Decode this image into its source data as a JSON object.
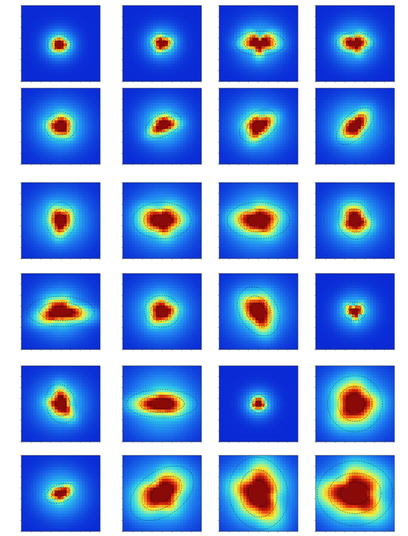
{
  "figure": {
    "rows": 6,
    "cols": 4,
    "colormap": [
      "#0a2ad6",
      "#1f7ff0",
      "#2fd0e8",
      "#7ff0b0",
      "#f2f03a",
      "#f5a020",
      "#e02a10",
      "#8a0a0a"
    ],
    "contour_color": "#000000"
  },
  "chart_data": [
    {
      "type": "heatmap",
      "panel": 1,
      "core": [
        -0.1,
        0.1,
        0.55,
        0.5,
        0
      ],
      "halo": 1.2,
      "irregularity": 0.15,
      "peak": 0.95
    },
    {
      "type": "heatmap",
      "panel": 2,
      "core": [
        0.0,
        0.0,
        0.6,
        0.5,
        0
      ],
      "halo": 1.3,
      "irregularity": 0.35,
      "peak": 0.95
    },
    {
      "type": "heatmap",
      "panel": 3,
      "core": [
        0.1,
        0.0,
        1.2,
        0.6,
        0
      ],
      "halo": 1.7,
      "irregularity": 0.7,
      "peak": 1.0
    },
    {
      "type": "heatmap",
      "panel": 4,
      "core": [
        0.0,
        0.0,
        0.9,
        0.55,
        0
      ],
      "halo": 1.6,
      "irregularity": 0.45,
      "peak": 1.0
    },
    {
      "type": "heatmap",
      "panel": 5,
      "core": [
        0.0,
        0.0,
        0.75,
        0.7,
        0
      ],
      "halo": 1.9,
      "irregularity": 0.25,
      "peak": 1.0
    },
    {
      "type": "heatmap",
      "panel": 6,
      "core": [
        0.1,
        -0.1,
        0.9,
        0.55,
        -25
      ],
      "halo": 1.8,
      "irregularity": 0.4,
      "peak": 1.0
    },
    {
      "type": "heatmap",
      "panel": 7,
      "core": [
        0.0,
        0.0,
        1.0,
        0.7,
        -35
      ],
      "halo": 2.0,
      "irregularity": 0.4,
      "peak": 1.0
    },
    {
      "type": "heatmap",
      "panel": 8,
      "core": [
        0.0,
        0.0,
        1.1,
        0.6,
        -45
      ],
      "halo": 2.0,
      "irregularity": 0.3,
      "peak": 1.0
    },
    {
      "type": "heatmap",
      "panel": 9,
      "core": [
        0.0,
        0.0,
        0.7,
        0.9,
        0
      ],
      "halo": 2.1,
      "irregularity": 0.3,
      "peak": 1.0
    },
    {
      "type": "heatmap",
      "panel": 10,
      "core": [
        0.0,
        0.0,
        1.4,
        0.9,
        0
      ],
      "halo": 2.3,
      "irregularity": 0.35,
      "peak": 1.0
    },
    {
      "type": "heatmap",
      "panel": 11,
      "core": [
        0.0,
        0.0,
        1.5,
        0.9,
        0
      ],
      "halo": 2.4,
      "irregularity": 0.3,
      "peak": 1.0
    },
    {
      "type": "heatmap",
      "panel": 12,
      "core": [
        0.0,
        0.0,
        0.8,
        0.95,
        -20
      ],
      "halo": 2.1,
      "irregularity": 0.3,
      "peak": 1.0
    },
    {
      "type": "heatmap",
      "panel": 13,
      "core": [
        0.0,
        0.0,
        1.6,
        0.75,
        0
      ],
      "halo": 2.0,
      "irregularity": 0.55,
      "peak": 1.0
    },
    {
      "type": "heatmap",
      "panel": 14,
      "core": [
        0.0,
        0.0,
        0.85,
        0.8,
        0
      ],
      "halo": 2.1,
      "irregularity": 0.3,
      "peak": 1.0
    },
    {
      "type": "heatmap",
      "panel": 15,
      "core": [
        0.0,
        0.0,
        0.9,
        1.3,
        -30
      ],
      "halo": 2.2,
      "irregularity": 0.3,
      "peak": 1.0
    },
    {
      "type": "heatmap",
      "panel": 16,
      "core": [
        0.0,
        0.0,
        0.55,
        0.45,
        0
      ],
      "halo": 1.4,
      "irregularity": 0.7,
      "peak": 0.95
    },
    {
      "type": "heatmap",
      "panel": 17,
      "core": [
        0.0,
        0.0,
        0.7,
        1.0,
        -15
      ],
      "halo": 1.9,
      "irregularity": 0.45,
      "peak": 1.0
    },
    {
      "type": "heatmap",
      "panel": 18,
      "core": [
        0.0,
        0.0,
        1.7,
        0.7,
        0
      ],
      "halo": 2.5,
      "irregularity": 0.25,
      "peak": 1.0
    },
    {
      "type": "heatmap",
      "panel": 19,
      "core": [
        0.0,
        0.0,
        0.45,
        0.45,
        0
      ],
      "halo": 1.1,
      "irregularity": 0.2,
      "peak": 0.95
    },
    {
      "type": "heatmap",
      "panel": 20,
      "core": [
        0.0,
        0.0,
        1.3,
        1.4,
        0
      ],
      "halo": 2.6,
      "irregularity": 0.3,
      "peak": 1.0
    },
    {
      "type": "heatmap",
      "panel": 21,
      "core": [
        0.0,
        0.0,
        0.75,
        0.45,
        -20
      ],
      "halo": 1.8,
      "irregularity": 0.3,
      "peak": 0.95
    },
    {
      "type": "heatmap",
      "panel": 22,
      "core": [
        0.0,
        0.0,
        1.7,
        1.1,
        -35
      ],
      "halo": 2.7,
      "irregularity": 0.35,
      "peak": 1.0
    },
    {
      "type": "heatmap",
      "panel": 23,
      "core": [
        0.0,
        0.0,
        1.4,
        1.9,
        -10
      ],
      "halo": 2.8,
      "irregularity": 0.45,
      "peak": 1.0
    },
    {
      "type": "heatmap",
      "panel": 24,
      "core": [
        0.0,
        0.0,
        2.0,
        1.6,
        0
      ],
      "halo": 2.9,
      "irregularity": 0.5,
      "peak": 1.0
    }
  ]
}
